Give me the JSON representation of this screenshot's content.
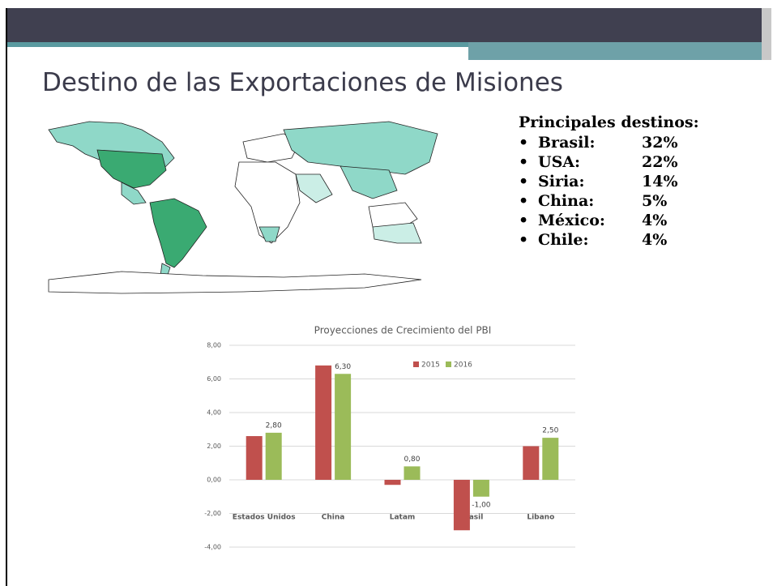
{
  "slide": {
    "title": "Destino de las Exportaciones de Misiones",
    "destinations": {
      "heading": "Principales destinos:",
      "items": [
        {
          "label": "Brasil:",
          "value": "32%"
        },
        {
          "label": "USA:",
          "value": "22%"
        },
        {
          "label": "Siria:",
          "value": "14%"
        },
        {
          "label": "China:",
          "value": "5%"
        },
        {
          "label": "México:",
          "value": "4%"
        },
        {
          "label": "Chile:",
          "value": "4%"
        }
      ]
    }
  },
  "chart_data": {
    "type": "bar",
    "title": "Proyecciones de Crecimiento del PBI",
    "categories": [
      "Estados Unidos",
      "China",
      "Latam",
      "Brasil",
      "Libano"
    ],
    "series": [
      {
        "name": "2015",
        "color": "#c0504d",
        "values": [
          2.6,
          6.8,
          -0.3,
          -3.0,
          2.0
        ]
      },
      {
        "name": "2016",
        "color": "#9bbb59",
        "values": [
          2.8,
          6.3,
          0.8,
          -1.0,
          2.5
        ],
        "value_labels": [
          "2,80",
          "6,30",
          "0,80",
          "-1,00",
          "2,50"
        ]
      }
    ],
    "ylim": [
      -4,
      8
    ],
    "yticks": [
      {
        "value": -4,
        "label": "-4,00"
      },
      {
        "value": -2,
        "label": "-2,00"
      },
      {
        "value": 0,
        "label": "0,00"
      },
      {
        "value": 2,
        "label": "2,00"
      },
      {
        "value": 4,
        "label": "4,00"
      },
      {
        "value": 6,
        "label": "6,00"
      },
      {
        "value": 8,
        "label": "8,00"
      }
    ],
    "grid": true,
    "legend": "top"
  }
}
